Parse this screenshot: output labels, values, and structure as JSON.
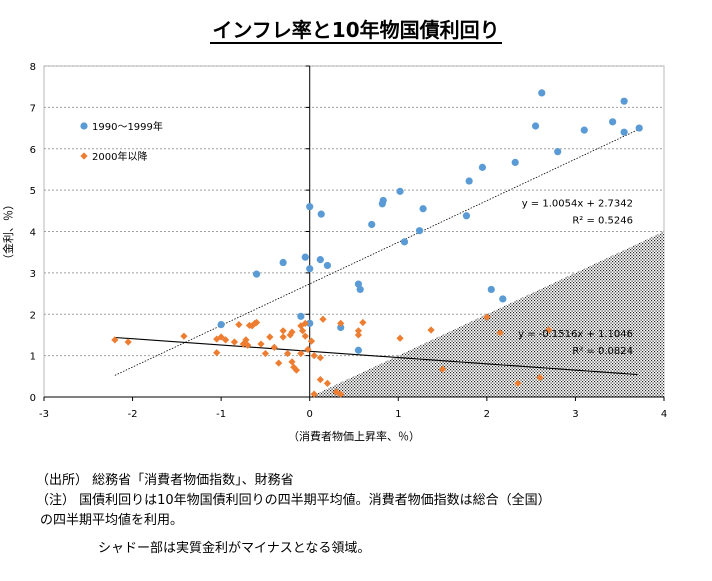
{
  "chart_data": {
    "type": "scatter",
    "title": "インフレ率と10年物国債利回り",
    "xlabel": "（消費者物価上昇率、％）",
    "ylabel": "（金利、％）",
    "xlim": [
      -3,
      4
    ],
    "ylim": [
      0,
      8
    ],
    "x_ticks": [
      "-3",
      "-2",
      "-1",
      "0",
      "1",
      "2",
      "3",
      "4"
    ],
    "y_ticks": [
      "0",
      "1",
      "2",
      "3",
      "4",
      "5",
      "6",
      "7",
      "8"
    ],
    "grid": "horizontal dotted",
    "legend_position": "upper-left",
    "shaded_region": "real interest rate negative (y < x)",
    "series": [
      {
        "name": "1990〜1999年",
        "color": "#5b9bd5",
        "marker": "circle",
        "points": [
          [
            -1.0,
            1.75
          ],
          [
            -0.6,
            2.97
          ],
          [
            -0.3,
            3.25
          ],
          [
            -0.1,
            1.95
          ],
          [
            -0.05,
            3.38
          ],
          [
            0.0,
            3.1
          ],
          [
            0.0,
            4.6
          ],
          [
            0.0,
            1.78
          ],
          [
            0.13,
            4.42
          ],
          [
            0.12,
            3.32
          ],
          [
            0.2,
            3.18
          ],
          [
            0.55,
            2.73
          ],
          [
            0.57,
            2.6
          ],
          [
            0.55,
            1.13
          ],
          [
            0.35,
            1.68
          ],
          [
            0.7,
            4.17
          ],
          [
            0.82,
            4.67
          ],
          [
            0.83,
            4.75
          ],
          [
            1.02,
            4.97
          ],
          [
            1.07,
            3.75
          ],
          [
            1.24,
            4.02
          ],
          [
            1.28,
            4.55
          ],
          [
            1.77,
            4.38
          ],
          [
            1.8,
            5.22
          ],
          [
            1.95,
            5.55
          ],
          [
            2.05,
            2.6
          ],
          [
            2.18,
            2.37
          ],
          [
            2.32,
            5.67
          ],
          [
            2.55,
            6.55
          ],
          [
            2.62,
            7.35
          ],
          [
            2.8,
            5.93
          ],
          [
            3.1,
            6.45
          ],
          [
            3.42,
            6.65
          ],
          [
            3.55,
            6.4
          ],
          [
            3.55,
            7.15
          ],
          [
            3.72,
            6.5
          ]
        ]
      },
      {
        "name": "2000年以降",
        "color": "#ed7d31",
        "marker": "diamond",
        "points": [
          [
            -2.2,
            1.38
          ],
          [
            -2.05,
            1.33
          ],
          [
            -1.42,
            1.47
          ],
          [
            -1.05,
            1.07
          ],
          [
            -1.05,
            1.4
          ],
          [
            -1.0,
            1.45
          ],
          [
            -0.95,
            1.38
          ],
          [
            -0.85,
            1.33
          ],
          [
            -0.8,
            1.75
          ],
          [
            -0.75,
            1.28
          ],
          [
            -0.72,
            1.38
          ],
          [
            -0.7,
            1.25
          ],
          [
            -0.68,
            1.73
          ],
          [
            -0.65,
            1.72
          ],
          [
            -0.62,
            1.78
          ],
          [
            -0.6,
            1.8
          ],
          [
            -0.55,
            1.28
          ],
          [
            -0.5,
            1.05
          ],
          [
            -0.45,
            1.45
          ],
          [
            -0.4,
            1.2
          ],
          [
            -0.35,
            0.82
          ],
          [
            -0.3,
            1.6
          ],
          [
            -0.3,
            1.45
          ],
          [
            -0.25,
            1.05
          ],
          [
            -0.22,
            1.5
          ],
          [
            -0.2,
            1.57
          ],
          [
            -0.2,
            0.85
          ],
          [
            -0.18,
            0.72
          ],
          [
            -0.15,
            0.65
          ],
          [
            -0.1,
            1.05
          ],
          [
            -0.1,
            1.72
          ],
          [
            -0.08,
            1.6
          ],
          [
            -0.05,
            1.47
          ],
          [
            -0.05,
            1.78
          ],
          [
            -0.02,
            1.15
          ],
          [
            0.02,
            1.35
          ],
          [
            0.05,
            1.0
          ],
          [
            0.05,
            0.07
          ],
          [
            0.12,
            0.42
          ],
          [
            0.12,
            0.95
          ],
          [
            0.15,
            1.88
          ],
          [
            0.2,
            0.33
          ],
          [
            0.3,
            0.12
          ],
          [
            0.35,
            0.07
          ],
          [
            0.35,
            1.78
          ],
          [
            0.55,
            1.5
          ],
          [
            0.55,
            1.6
          ],
          [
            0.6,
            1.8
          ],
          [
            1.02,
            1.42
          ],
          [
            1.37,
            1.62
          ],
          [
            1.5,
            0.67
          ],
          [
            2.0,
            1.93
          ],
          [
            2.15,
            1.55
          ],
          [
            2.35,
            0.33
          ],
          [
            2.6,
            0.47
          ],
          [
            2.7,
            1.62
          ]
        ]
      }
    ],
    "trendlines": [
      {
        "series": "1990〜1999年",
        "equation": "y = 1.0054x + 2.7342",
        "r2": "R² = 0.5246",
        "slope": 1.0054,
        "intercept": 2.7342,
        "x_range": [
          -2.2,
          3.7
        ],
        "label_at": [
          3.65,
          4.6
        ]
      },
      {
        "series": "2000年以降",
        "equation": "y = -0.1516x + 1.1046",
        "r2": "R² = 0.0824",
        "slope": -0.1516,
        "intercept": 1.1046,
        "x_range": [
          -2.2,
          3.7
        ],
        "label_at": [
          3.65,
          1.45
        ]
      }
    ]
  },
  "notes": {
    "line1": "（出所）  総務省「消費者物価指数」、財務省",
    "line2": "（注）    国債利回りは10年物国債利回りの四半期平均値。消費者物価指数は総合（全国）",
    "line3": "の四半期平均値を利用。",
    "line4": "シャドー部は実質金利がマイナスとなる領域。"
  }
}
